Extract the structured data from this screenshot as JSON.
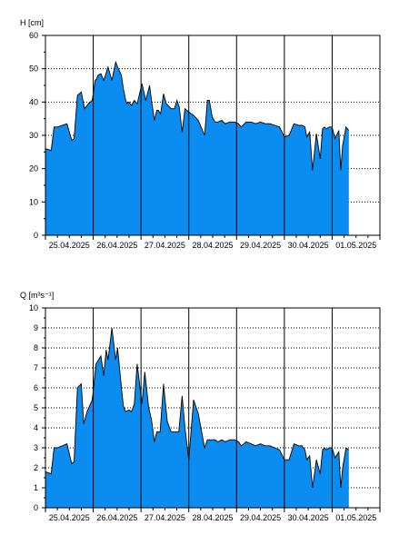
{
  "colors": {
    "fill": "#0A8CF0",
    "line": "#000000",
    "grid": "#000000",
    "background": "#ffffff"
  },
  "chart_data": [
    {
      "type": "area",
      "ylabel": "H [cm]",
      "ylim": [
        0,
        60
      ],
      "y_ticks": [
        "0",
        "10",
        "20",
        "30",
        "40",
        "50",
        "60"
      ],
      "x_ticks": [
        "25.04.2025",
        "26.04.2025",
        "27.04.2025",
        "28.04.2025",
        "29.04.2025",
        "30.04.2025",
        "01.05.2025"
      ],
      "grid": true,
      "series": [
        {
          "x": [
            0.0,
            0.12,
            0.18,
            0.25,
            0.45,
            0.55,
            0.6,
            0.67,
            0.75,
            0.82,
            0.9,
            0.98,
            1.04,
            1.07,
            1.1,
            1.16,
            1.22,
            1.31,
            1.39,
            1.47,
            1.51,
            1.59,
            1.63,
            1.68,
            1.71,
            1.75,
            1.8,
            1.86,
            1.92,
            2.02,
            2.1,
            2.18,
            2.22,
            2.28,
            2.33,
            2.36,
            2.41,
            2.47,
            2.53,
            2.63,
            2.7,
            2.75,
            2.8,
            2.86,
            2.92,
            3.0,
            3.1,
            3.2,
            3.33,
            3.39,
            3.43,
            3.49,
            3.55,
            3.61,
            3.69,
            3.76,
            3.86,
            3.96,
            4.04,
            4.1,
            4.2,
            4.3,
            4.4,
            4.5,
            4.6,
            4.7,
            4.8,
            4.9,
            5.0,
            5.1,
            5.2,
            5.3,
            5.37,
            5.43,
            5.47,
            5.53,
            5.59,
            5.67,
            5.75,
            5.8,
            5.84,
            5.88,
            5.94,
            6.0,
            6.06,
            6.14,
            6.18,
            6.22,
            6.29,
            6.35
          ],
          "values": [
            26.0,
            25.5,
            32.5,
            32.5,
            33.5,
            28.5,
            29.0,
            42.0,
            43.0,
            38.0,
            39.5,
            40.5,
            46.5,
            47.0,
            48.0,
            48.5,
            46.5,
            50.5,
            46.5,
            52.0,
            50.5,
            48.0,
            44.0,
            40.5,
            39.5,
            40.0,
            39.0,
            40.5,
            39.5,
            45.5,
            40.5,
            45.0,
            40.5,
            34.5,
            37.5,
            37.5,
            36.5,
            42.5,
            39.5,
            38.0,
            38.0,
            40.5,
            38.5,
            31.0,
            38.0,
            37.0,
            36.0,
            34.5,
            30.0,
            40.5,
            40.5,
            35.5,
            34.0,
            34.0,
            34.5,
            33.5,
            34.0,
            34.0,
            33.5,
            32.5,
            34.0,
            34.0,
            33.5,
            34.0,
            33.5,
            33.5,
            33.0,
            32.5,
            29.5,
            30.0,
            33.5,
            33.0,
            33.0,
            32.5,
            29.5,
            31.0,
            19.5,
            30.5,
            23.0,
            32.0,
            32.5,
            32.0,
            32.5,
            32.5,
            29.0,
            31.5,
            19.5,
            27.0,
            32.5,
            31.5
          ]
        }
      ]
    },
    {
      "type": "area",
      "ylabel": "Q [m³s⁻¹]",
      "ylim": [
        0,
        10
      ],
      "y_ticks": [
        "0",
        "1",
        "2",
        "3",
        "4",
        "5",
        "6",
        "7",
        "8",
        "9",
        "10"
      ],
      "x_ticks": [
        "25.04.2025",
        "26.04.2025",
        "27.04.2025",
        "28.04.2025",
        "29.04.2025",
        "30.04.2025",
        "01.05.2025"
      ],
      "grid": true,
      "series": [
        {
          "x": [
            0.0,
            0.12,
            0.18,
            0.25,
            0.45,
            0.55,
            0.6,
            0.67,
            0.75,
            0.8,
            0.87,
            0.98,
            1.06,
            1.16,
            1.22,
            1.27,
            1.31,
            1.39,
            1.47,
            1.51,
            1.59,
            1.63,
            1.68,
            1.75,
            1.8,
            1.86,
            1.92,
            2.02,
            2.08,
            2.16,
            2.22,
            2.28,
            2.33,
            2.4,
            2.47,
            2.55,
            2.63,
            2.73,
            2.79,
            2.86,
            2.92,
            3.0,
            3.1,
            3.2,
            3.33,
            3.39,
            3.43,
            3.49,
            3.55,
            3.61,
            3.69,
            3.76,
            3.86,
            3.96,
            4.04,
            4.1,
            4.2,
            4.3,
            4.4,
            4.5,
            4.6,
            4.7,
            4.8,
            4.9,
            5.0,
            5.1,
            5.2,
            5.3,
            5.37,
            5.43,
            5.47,
            5.53,
            5.59,
            5.67,
            5.75,
            5.8,
            5.84,
            5.88,
            5.94,
            6.0,
            6.06,
            6.14,
            6.18,
            6.22,
            6.29,
            6.35
          ],
          "values": [
            1.8,
            1.7,
            3.0,
            3.0,
            3.2,
            2.2,
            2.3,
            6.0,
            6.2,
            4.2,
            4.8,
            5.4,
            7.2,
            7.6,
            6.6,
            7.9,
            7.4,
            9.0,
            7.4,
            8.0,
            6.0,
            5.1,
            4.8,
            4.9,
            4.8,
            5.2,
            7.2,
            5.2,
            6.8,
            5.0,
            4.4,
            3.3,
            3.8,
            3.8,
            6.2,
            4.3,
            3.8,
            3.8,
            3.8,
            5.6,
            4.0,
            2.4,
            5.4,
            4.7,
            3.0,
            3.4,
            3.4,
            3.4,
            3.4,
            3.3,
            3.4,
            3.3,
            3.4,
            3.4,
            3.3,
            3.1,
            3.3,
            3.2,
            3.1,
            3.2,
            3.1,
            3.1,
            3.0,
            2.9,
            2.4,
            2.4,
            3.2,
            3.1,
            3.1,
            2.9,
            2.4,
            2.6,
            1.0,
            2.4,
            1.7,
            2.9,
            3.0,
            2.9,
            3.0,
            3.0,
            2.5,
            2.8,
            1.0,
            2.0,
            3.0,
            2.9
          ]
        }
      ]
    }
  ]
}
